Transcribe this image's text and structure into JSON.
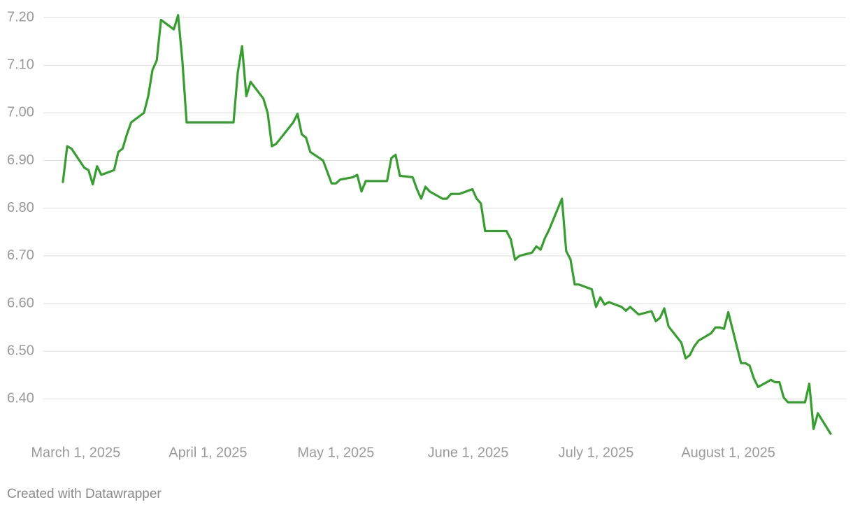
{
  "chart_data": {
    "type": "line",
    "x": [
      "2025-02-26",
      "2025-02-27",
      "2025-02-28",
      "2025-03-03",
      "2025-03-04",
      "2025-03-05",
      "2025-03-06",
      "2025-03-07",
      "2025-03-10",
      "2025-03-11",
      "2025-03-12",
      "2025-03-13",
      "2025-03-14",
      "2025-03-17",
      "2025-03-18",
      "2025-03-19",
      "2025-03-20",
      "2025-03-21",
      "2025-03-24",
      "2025-03-25",
      "2025-03-26",
      "2025-03-27",
      "2025-04-07",
      "2025-04-08",
      "2025-04-09",
      "2025-04-10",
      "2025-04-11",
      "2025-04-14",
      "2025-04-15",
      "2025-04-16",
      "2025-04-17",
      "2025-04-21",
      "2025-04-22",
      "2025-04-23",
      "2025-04-24",
      "2025-04-25",
      "2025-04-28",
      "2025-04-30",
      "2025-05-01",
      "2025-05-02",
      "2025-05-05",
      "2025-05-06",
      "2025-05-07",
      "2025-05-08",
      "2025-05-13",
      "2025-05-14",
      "2025-05-15",
      "2025-05-16",
      "2025-05-19",
      "2025-05-20",
      "2025-05-21",
      "2025-05-22",
      "2025-05-23",
      "2025-05-26",
      "2025-05-27",
      "2025-05-28",
      "2025-05-30",
      "2025-06-02",
      "2025-06-03",
      "2025-06-04",
      "2025-06-05",
      "2025-06-10",
      "2025-06-11",
      "2025-06-12",
      "2025-06-13",
      "2025-06-16",
      "2025-06-17",
      "2025-06-18",
      "2025-06-19",
      "2025-06-20",
      "2025-06-23",
      "2025-06-24",
      "2025-06-25",
      "2025-06-26",
      "2025-06-27",
      "2025-06-30",
      "2025-07-01",
      "2025-07-02",
      "2025-07-03",
      "2025-07-04",
      "2025-07-07",
      "2025-07-08",
      "2025-07-09",
      "2025-07-10",
      "2025-07-11",
      "2025-07-14",
      "2025-07-15",
      "2025-07-16",
      "2025-07-17",
      "2025-07-18",
      "2025-07-21",
      "2025-07-22",
      "2025-07-23",
      "2025-07-24",
      "2025-07-25",
      "2025-07-28",
      "2025-07-29",
      "2025-07-30",
      "2025-07-31",
      "2025-08-01",
      "2025-08-04",
      "2025-08-05",
      "2025-08-06",
      "2025-08-07",
      "2025-08-08",
      "2025-08-11",
      "2025-08-12",
      "2025-08-13",
      "2025-08-14",
      "2025-08-15",
      "2025-08-19",
      "2025-08-20",
      "2025-08-21",
      "2025-08-22",
      "2025-08-25"
    ],
    "series": [
      {
        "color": "#33a02c",
        "values": [
          6.855,
          6.93,
          6.925,
          6.885,
          6.88,
          6.85,
          6.888,
          6.87,
          6.88,
          6.918,
          6.925,
          6.955,
          6.98,
          7.0,
          7.035,
          7.09,
          7.11,
          7.195,
          7.175,
          7.205,
          7.11,
          6.98,
          6.98,
          7.085,
          7.14,
          7.035,
          7.065,
          7.03,
          7.0,
          6.93,
          6.935,
          6.98,
          6.998,
          6.955,
          6.948,
          6.918,
          6.9,
          6.852,
          6.852,
          6.86,
          6.865,
          6.87,
          6.835,
          6.857,
          6.857,
          6.905,
          6.912,
          6.868,
          6.865,
          6.84,
          6.82,
          6.845,
          6.835,
          6.82,
          6.82,
          6.83,
          6.83,
          6.84,
          6.82,
          6.81,
          6.752,
          6.752,
          6.735,
          6.692,
          6.7,
          6.707,
          6.72,
          6.713,
          6.737,
          6.755,
          6.82,
          6.71,
          6.693,
          6.64,
          6.64,
          6.63,
          6.593,
          6.613,
          6.598,
          6.603,
          6.593,
          6.585,
          6.593,
          6.585,
          6.577,
          6.584,
          6.563,
          6.57,
          6.59,
          6.552,
          6.518,
          6.485,
          6.492,
          6.51,
          6.522,
          6.538,
          6.55,
          6.55,
          6.547,
          6.582,
          6.475,
          6.475,
          6.47,
          6.443,
          6.425,
          6.44,
          6.435,
          6.435,
          6.403,
          6.393,
          6.393,
          6.432,
          6.337,
          6.37,
          6.327
        ]
      }
    ],
    "xlim": [
      "2025-02-26",
      "2025-08-25"
    ],
    "xticks": [
      {
        "value": "2025-03-01",
        "label": "March 1, 2025"
      },
      {
        "value": "2025-04-01",
        "label": "April 1, 2025"
      },
      {
        "value": "2025-05-01",
        "label": "May 1, 2025"
      },
      {
        "value": "2025-06-01",
        "label": "June 1, 2025"
      },
      {
        "value": "2025-07-01",
        "label": "July 1, 2025"
      },
      {
        "value": "2025-08-01",
        "label": "August 1, 2025"
      }
    ],
    "ylim": [
      6.32,
      7.21
    ],
    "yticks": [
      {
        "value": 6.4,
        "label": "6.40"
      },
      {
        "value": 6.5,
        "label": "6.50"
      },
      {
        "value": 6.6,
        "label": "6.60"
      },
      {
        "value": 6.7,
        "label": "6.70"
      },
      {
        "value": 6.8,
        "label": "6.80"
      },
      {
        "value": 6.9,
        "label": "6.90"
      },
      {
        "value": 7.0,
        "label": "7.00"
      },
      {
        "value": 7.1,
        "label": "7.10"
      },
      {
        "value": 7.2,
        "label": "7.20"
      }
    ],
    "grid": true
  },
  "footer": "Created with Datawrapper"
}
